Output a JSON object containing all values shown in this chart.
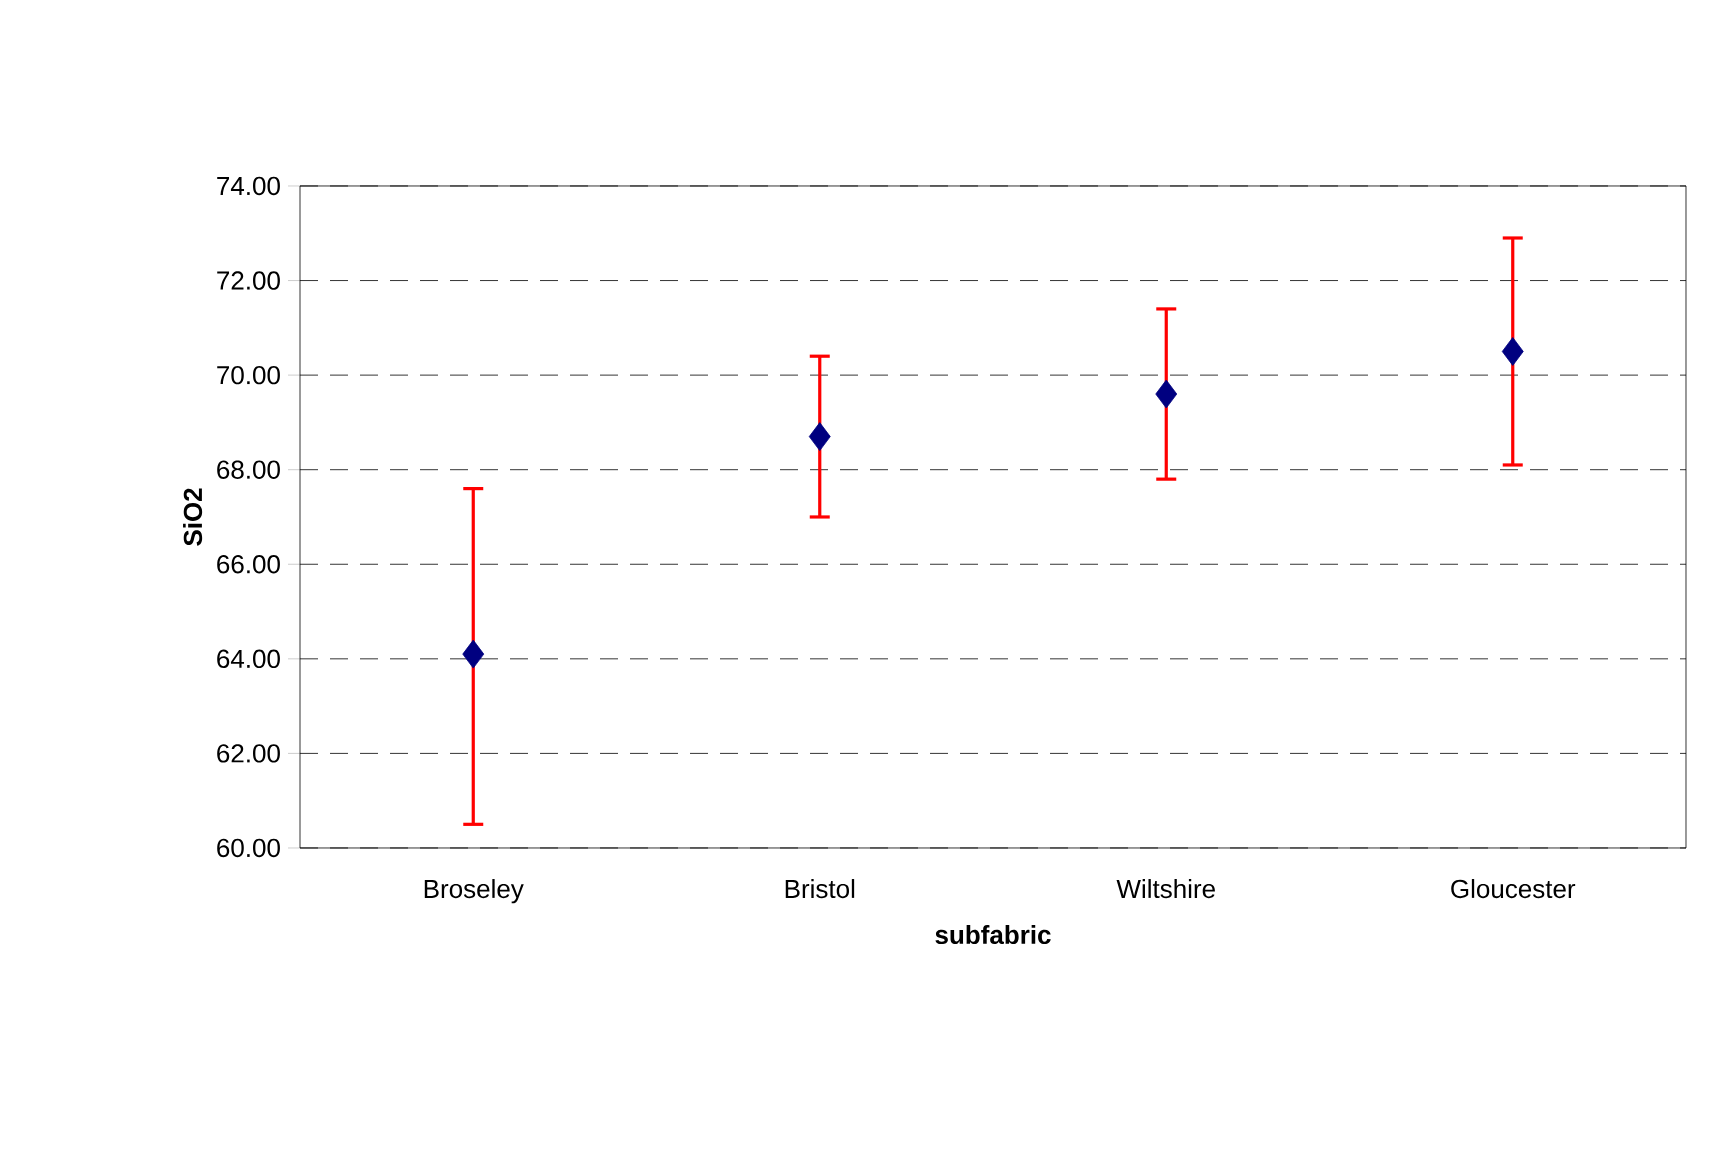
{
  "chart_data": {
    "type": "scatter",
    "xlabel": "subfabric",
    "ylabel": "SiO2",
    "categories": [
      "Broseley",
      "Bristol",
      "Wiltshire",
      "Gloucester"
    ],
    "series": [
      {
        "color": "#000080",
        "values": [
          64.1,
          68.7,
          69.6,
          70.5
        ],
        "errors": [
          [
            60.5,
            67.6
          ],
          [
            67.0,
            70.4
          ],
          [
            67.8,
            71.4
          ],
          [
            68.1,
            72.9
          ]
        ]
      }
    ],
    "marker": "diamond",
    "grid": "y",
    "ylim": [
      60,
      74
    ],
    "yticks": [
      {
        "value": 60,
        "label": "60.00"
      },
      {
        "value": 62,
        "label": "62.00"
      },
      {
        "value": 64,
        "label": "64.00"
      },
      {
        "value": 66,
        "label": "66.00"
      },
      {
        "value": 68,
        "label": "68.00"
      },
      {
        "value": 70,
        "label": "70.00"
      },
      {
        "value": 72,
        "label": "72.00"
      },
      {
        "value": 74,
        "label": "74.00"
      }
    ]
  }
}
